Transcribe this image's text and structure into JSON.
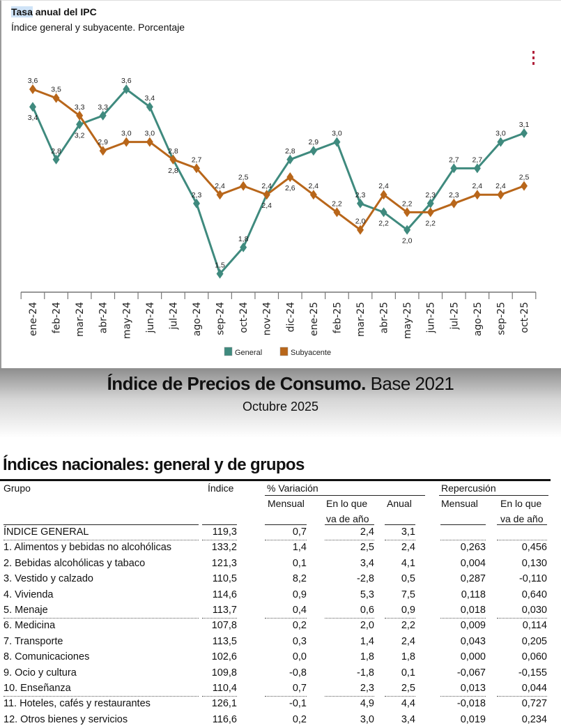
{
  "chart_header": {
    "title_highlight": "Tasa",
    "title_rest": " anual del IPC",
    "subtitle": "Índice general y subyacente. Porcentaje",
    "menu_icon": "vertical-ellipsis-icon"
  },
  "chart_data": {
    "type": "line",
    "title": "Tasa anual del IPC",
    "subtitle": "Índice general y subyacente. Porcentaje",
    "categories": [
      "ene-24",
      "feb-24",
      "mar-24",
      "abr-24",
      "may-24",
      "jun-24",
      "jul-24",
      "ago-24",
      "sep-24",
      "oct-24",
      "nov-24",
      "dic-24",
      "ene-25",
      "feb-25",
      "mar-25",
      "abr-25",
      "may-25",
      "jun-25",
      "jul-25",
      "ago-25",
      "sep-25",
      "oct-25"
    ],
    "series": [
      {
        "name": "General",
        "color": "#3f8a7e",
        "values": [
          3.4,
          2.8,
          3.2,
          3.3,
          3.6,
          3.4,
          2.8,
          2.3,
          1.5,
          1.8,
          2.4,
          2.8,
          2.9,
          3.0,
          2.3,
          2.2,
          2.0,
          2.3,
          2.7,
          2.7,
          3.0,
          3.1
        ]
      },
      {
        "name": "Subyacente",
        "color": "#b8661a",
        "values": [
          3.6,
          3.5,
          3.3,
          2.9,
          3.0,
          3.0,
          2.8,
          2.7,
          2.4,
          2.5,
          2.4,
          2.6,
          2.4,
          2.2,
          2.0,
          2.4,
          2.2,
          2.2,
          2.3,
          2.4,
          2.4,
          2.5
        ]
      }
    ],
    "decimal_separator": ",",
    "marker": "diamond",
    "data_labels": true,
    "grid": false,
    "y_axis_visible": false,
    "legend_position": "bottom"
  },
  "document": {
    "title_bold": "Índice de Precios de Consumo.",
    "title_regular": " Base 2021",
    "subtitle": "Octubre 2025"
  },
  "table": {
    "title": "Índices nacionales: general y de grupos",
    "headers": {
      "grupo": "Grupo",
      "indice": "Índice",
      "variacion": "% Variación",
      "repercusion": "Repercusión",
      "mensual": "Mensual",
      "en_lo_que_1": "En lo que",
      "en_lo_que_2": "va de año",
      "anual": "Anual",
      "rep_mensual": "Mensual",
      "rep_en_lo_que_1": "En lo que",
      "rep_en_lo_que_2": "va de año"
    },
    "rows": [
      {
        "grupo": "ÍNDICE GENERAL",
        "indice": "119,3",
        "mensual": "0,7",
        "en_lo_que": "2,4",
        "anual": "3,1",
        "rep_mensual": "",
        "rep_en_lo_que": ""
      },
      {
        "grupo": "1. Alimentos y bebidas no alcohólicas",
        "indice": "133,2",
        "mensual": "1,4",
        "en_lo_que": "2,5",
        "anual": "2,4",
        "rep_mensual": "0,263",
        "rep_en_lo_que": "0,456"
      },
      {
        "grupo": "2. Bebidas alcohólicas y tabaco",
        "indice": "121,3",
        "mensual": "0,1",
        "en_lo_que": "3,4",
        "anual": "4,1",
        "rep_mensual": "0,004",
        "rep_en_lo_que": "0,130"
      },
      {
        "grupo": "3. Vestido y calzado",
        "indice": "110,5",
        "mensual": "8,2",
        "en_lo_que": "-2,8",
        "anual": "0,5",
        "rep_mensual": "0,287",
        "rep_en_lo_que": "-0,110"
      },
      {
        "grupo": "4. Vivienda",
        "indice": "114,6",
        "mensual": "0,9",
        "en_lo_que": "5,3",
        "anual": "7,5",
        "rep_mensual": "0,118",
        "rep_en_lo_que": "0,640"
      },
      {
        "grupo": "5. Menaje",
        "indice": "113,7",
        "mensual": "0,4",
        "en_lo_que": "0,6",
        "anual": "0,9",
        "rep_mensual": "0,018",
        "rep_en_lo_que": "0,030"
      },
      {
        "grupo": "6. Medicina",
        "indice": "107,8",
        "mensual": "0,2",
        "en_lo_que": "2,0",
        "anual": "2,2",
        "rep_mensual": "0,009",
        "rep_en_lo_que": "0,114"
      },
      {
        "grupo": "7. Transporte",
        "indice": "113,5",
        "mensual": "0,3",
        "en_lo_que": "1,4",
        "anual": "2,4",
        "rep_mensual": "0,043",
        "rep_en_lo_que": "0,205"
      },
      {
        "grupo": "8. Comunicaciones",
        "indice": "102,6",
        "mensual": "0,0",
        "en_lo_que": "1,8",
        "anual": "1,8",
        "rep_mensual": "0,000",
        "rep_en_lo_que": "0,060"
      },
      {
        "grupo": "9. Ocio y cultura",
        "indice": "109,8",
        "mensual": "-0,8",
        "en_lo_que": "-1,8",
        "anual": "0,1",
        "rep_mensual": "-0,067",
        "rep_en_lo_que": "-0,155"
      },
      {
        "grupo": "10. Enseñanza",
        "indice": "110,4",
        "mensual": "0,7",
        "en_lo_que": "2,3",
        "anual": "2,5",
        "rep_mensual": "0,013",
        "rep_en_lo_que": "0,044"
      },
      {
        "grupo": "11. Hoteles, cafés y restaurantes",
        "indice": "126,1",
        "mensual": "-0,1",
        "en_lo_que": "4,9",
        "anual": "4,4",
        "rep_mensual": "-0,018",
        "rep_en_lo_que": "0,727"
      },
      {
        "grupo": "12. Otros bienes y servicios",
        "indice": "116,6",
        "mensual": "0,2",
        "en_lo_que": "3,0",
        "anual": "3,4",
        "rep_mensual": "0,019",
        "rep_en_lo_que": "0,234"
      }
    ]
  }
}
